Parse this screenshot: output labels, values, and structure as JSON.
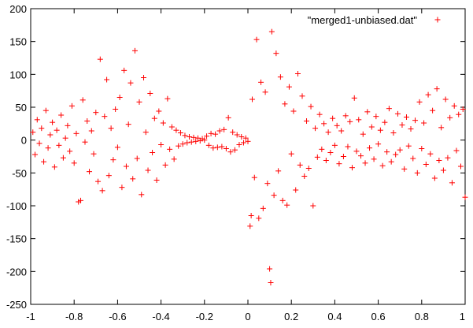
{
  "chart_data": {
    "type": "scatter",
    "title": "",
    "xlabel": "",
    "ylabel": "",
    "xlim": [
      -1,
      1
    ],
    "ylim": [
      -250,
      200
    ],
    "x_ticks": [
      -1,
      -0.8,
      -0.6,
      -0.4,
      -0.2,
      0,
      0.2,
      0.4,
      0.6,
      0.8,
      1
    ],
    "x_tick_labels": [
      "-1",
      "-0.8",
      "-0.6",
      "-0.4",
      "-0.2",
      "0",
      "0.2",
      "0.4",
      "0.6",
      "0.8",
      "1"
    ],
    "y_ticks": [
      -250,
      -200,
      -150,
      -100,
      -50,
      0,
      50,
      100,
      150,
      200
    ],
    "y_tick_labels": [
      "-250",
      "-200",
      "-150",
      "-100",
      "-50",
      "0",
      "50",
      "100",
      "150",
      "200"
    ],
    "grid": false,
    "legend_position": "top-right",
    "marker": "+",
    "series": [
      {
        "name": "\"merged1-unbiased.dat\"",
        "color": "#ff0000",
        "points": [
          [
            -0.99,
            12
          ],
          [
            -0.98,
            -22
          ],
          [
            -0.97,
            31
          ],
          [
            -0.96,
            -5
          ],
          [
            -0.95,
            18
          ],
          [
            -0.94,
            -33
          ],
          [
            -0.93,
            45
          ],
          [
            -0.92,
            -12
          ],
          [
            -0.91,
            8
          ],
          [
            -0.9,
            27
          ],
          [
            -0.89,
            -41
          ],
          [
            -0.88,
            15
          ],
          [
            -0.87,
            -8
          ],
          [
            -0.86,
            38
          ],
          [
            -0.85,
            -27
          ],
          [
            -0.84,
            3
          ],
          [
            -0.83,
            22
          ],
          [
            -0.82,
            -17
          ],
          [
            -0.81,
            52
          ],
          [
            -0.8,
            -35
          ],
          [
            -0.79,
            10
          ],
          [
            -0.78,
            -94
          ],
          [
            -0.77,
            -92
          ],
          [
            -0.76,
            61
          ],
          [
            -0.75,
            -3
          ],
          [
            -0.74,
            29
          ],
          [
            -0.73,
            -48
          ],
          [
            -0.72,
            14
          ],
          [
            -0.71,
            -21
          ],
          [
            -0.7,
            42
          ],
          [
            -0.69,
            -63
          ],
          [
            -0.68,
            123
          ],
          [
            -0.67,
            -77
          ],
          [
            -0.66,
            36
          ],
          [
            -0.65,
            92
          ],
          [
            -0.64,
            -54
          ],
          [
            -0.63,
            18
          ],
          [
            -0.62,
            -30
          ],
          [
            -0.61,
            47
          ],
          [
            -0.6,
            -11
          ],
          [
            -0.59,
            65
          ],
          [
            -0.58,
            -72
          ],
          [
            -0.57,
            106
          ],
          [
            -0.56,
            -40
          ],
          [
            -0.55,
            24
          ],
          [
            -0.54,
            87
          ],
          [
            -0.53,
            -59
          ],
          [
            -0.52,
            136
          ],
          [
            -0.51,
            -28
          ],
          [
            -0.5,
            58
          ],
          [
            -0.49,
            -83
          ],
          [
            -0.48,
            95
          ],
          [
            -0.47,
            12
          ],
          [
            -0.46,
            -46
          ],
          [
            -0.45,
            71
          ],
          [
            -0.44,
            -19
          ],
          [
            -0.43,
            33
          ],
          [
            -0.42,
            -61
          ],
          [
            -0.41,
            44
          ],
          [
            -0.4,
            -7
          ],
          [
            -0.39,
            26
          ],
          [
            -0.38,
            -38
          ],
          [
            -0.37,
            63
          ],
          [
            -0.36,
            -14
          ],
          [
            -0.35,
            20
          ],
          [
            -0.34,
            -29
          ],
          [
            -0.33,
            15
          ],
          [
            -0.32,
            -9
          ],
          [
            -0.31,
            11
          ],
          [
            -0.3,
            -6
          ],
          [
            -0.29,
            7
          ],
          [
            -0.28,
            -4
          ],
          [
            -0.27,
            5
          ],
          [
            -0.26,
            -3
          ],
          [
            -0.25,
            4
          ],
          [
            -0.24,
            -2
          ],
          [
            -0.23,
            3
          ],
          [
            -0.22,
            -1
          ],
          [
            -0.21,
            2
          ],
          [
            -0.2,
            0
          ],
          [
            -0.19,
            6
          ],
          [
            -0.18,
            -8
          ],
          [
            -0.17,
            10
          ],
          [
            -0.16,
            -12
          ],
          [
            -0.15,
            9
          ],
          [
            -0.14,
            -11
          ],
          [
            -0.13,
            14
          ],
          [
            -0.12,
            -10
          ],
          [
            -0.11,
            16
          ],
          [
            -0.1,
            -13
          ],
          [
            -0.09,
            34
          ],
          [
            -0.08,
            -18
          ],
          [
            -0.07,
            12
          ],
          [
            -0.06,
            -15
          ],
          [
            -0.05,
            8
          ],
          [
            -0.04,
            -7
          ],
          [
            -0.03,
            5
          ],
          [
            -0.02,
            -4
          ],
          [
            -0.01,
            3
          ],
          [
            0.0,
            -2
          ],
          [
            0.01,
            -131
          ],
          [
            0.015,
            -115
          ],
          [
            0.02,
            62
          ],
          [
            0.03,
            -57
          ],
          [
            0.04,
            153
          ],
          [
            0.05,
            -119
          ],
          [
            0.06,
            88
          ],
          [
            0.07,
            -104
          ],
          [
            0.08,
            73
          ],
          [
            0.09,
            -66
          ],
          [
            0.1,
            -196
          ],
          [
            0.105,
            -217
          ],
          [
            0.11,
            165
          ],
          [
            0.12,
            -84
          ],
          [
            0.13,
            132
          ],
          [
            0.14,
            -47
          ],
          [
            0.15,
            96
          ],
          [
            0.16,
            -92
          ],
          [
            0.17,
            55
          ],
          [
            0.18,
            -99
          ],
          [
            0.19,
            81
          ],
          [
            0.2,
            -21
          ],
          [
            0.21,
            44
          ],
          [
            0.22,
            -76
          ],
          [
            0.23,
            101
          ],
          [
            0.24,
            -38
          ],
          [
            0.25,
            67
          ],
          [
            0.26,
            -55
          ],
          [
            0.27,
            29
          ],
          [
            0.28,
            -43
          ],
          [
            0.29,
            51
          ],
          [
            0.3,
            -100
          ],
          [
            0.31,
            18
          ],
          [
            0.32,
            -26
          ],
          [
            0.33,
            39
          ],
          [
            0.34,
            -14
          ],
          [
            0.35,
            25
          ],
          [
            0.36,
            -31
          ],
          [
            0.37,
            12
          ],
          [
            0.38,
            -19
          ],
          [
            0.39,
            33
          ],
          [
            0.4,
            -8
          ],
          [
            0.41,
            22
          ],
          [
            0.42,
            -36
          ],
          [
            0.43,
            14
          ],
          [
            0.44,
            -25
          ],
          [
            0.45,
            37
          ],
          [
            0.46,
            -10
          ],
          [
            0.47,
            28
          ],
          [
            0.48,
            -42
          ],
          [
            0.49,
            64
          ],
          [
            0.5,
            -17
          ],
          [
            0.51,
            31
          ],
          [
            0.52,
            -24
          ],
          [
            0.53,
            9
          ],
          [
            0.54,
            -35
          ],
          [
            0.55,
            43
          ],
          [
            0.56,
            -12
          ],
          [
            0.57,
            20
          ],
          [
            0.58,
            -29
          ],
          [
            0.59,
            36
          ],
          [
            0.6,
            -6
          ],
          [
            0.61,
            15
          ],
          [
            0.62,
            -39
          ],
          [
            0.63,
            27
          ],
          [
            0.64,
            -18
          ],
          [
            0.65,
            48
          ],
          [
            0.66,
            -33
          ],
          [
            0.67,
            11
          ],
          [
            0.68,
            -22
          ],
          [
            0.69,
            40
          ],
          [
            0.7,
            -15
          ],
          [
            0.71,
            23
          ],
          [
            0.72,
            -44
          ],
          [
            0.73,
            35
          ],
          [
            0.74,
            -9
          ],
          [
            0.75,
            17
          ],
          [
            0.76,
            -28
          ],
          [
            0.77,
            30
          ],
          [
            0.78,
            -50
          ],
          [
            0.79,
            58
          ],
          [
            0.8,
            -13
          ],
          [
            0.81,
            26
          ],
          [
            0.82,
            -37
          ],
          [
            0.83,
            69
          ],
          [
            0.84,
            -21
          ],
          [
            0.85,
            45
          ],
          [
            0.86,
            -58
          ],
          [
            0.87,
            78
          ],
          [
            0.88,
            -31
          ],
          [
            0.89,
            19
          ],
          [
            0.9,
            -46
          ],
          [
            0.91,
            62
          ],
          [
            0.92,
            -27
          ],
          [
            0.93,
            34
          ],
          [
            0.94,
            -65
          ],
          [
            0.95,
            52
          ],
          [
            0.96,
            -16
          ],
          [
            0.97,
            39
          ],
          [
            0.98,
            -40
          ],
          [
            0.99,
            47
          ],
          [
            1.0,
            -87
          ]
        ]
      }
    ]
  }
}
